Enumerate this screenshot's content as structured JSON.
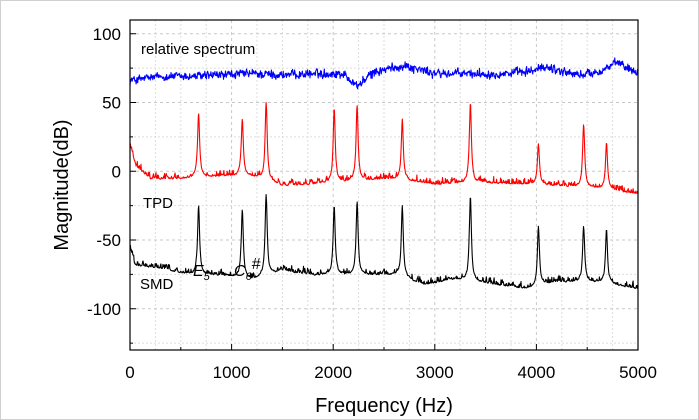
{
  "chart_data": {
    "type": "line",
    "title": "",
    "xlabel": "Frequency (Hz)",
    "ylabel": "Magnitude(dB)",
    "xlim": [
      0,
      5000
    ],
    "ylim": [
      -130,
      110
    ],
    "x_ticks": [
      0,
      1000,
      2000,
      3000,
      4000,
      5000
    ],
    "y_ticks": [
      100,
      50,
      0,
      -50,
      -100
    ],
    "grid": true,
    "legend": "none",
    "peak_frequencies": [
      675,
      1105,
      1340,
      2010,
      2235,
      2680,
      3350,
      4020,
      4465,
      4690
    ],
    "series": [
      {
        "name": "relative spectrum",
        "color": "#0000ff",
        "baseline": 70,
        "noise": 3.5,
        "points": [
          [
            0,
            66
          ],
          [
            300,
            69
          ],
          [
            600,
            69
          ],
          [
            900,
            70
          ],
          [
            1200,
            71
          ],
          [
            1500,
            70
          ],
          [
            1800,
            71
          ],
          [
            2100,
            71
          ],
          [
            2240,
            62
          ],
          [
            2400,
            72
          ],
          [
            2700,
            77
          ],
          [
            3000,
            71
          ],
          [
            3300,
            71
          ],
          [
            3600,
            71
          ],
          [
            3900,
            72
          ],
          [
            4100,
            76
          ],
          [
            4400,
            70
          ],
          [
            4600,
            72
          ],
          [
            4800,
            79
          ],
          [
            5000,
            72
          ]
        ]
      },
      {
        "name": "TPD",
        "color": "#ff0000",
        "baseline": -5,
        "noise": 4,
        "points": [
          [
            0,
            20
          ],
          [
            60,
            4
          ],
          [
            200,
            -5
          ],
          [
            500,
            -5
          ],
          [
            900,
            -3
          ],
          [
            1200,
            -3
          ],
          [
            1500,
            -10
          ],
          [
            2000,
            -8
          ],
          [
            2500,
            -5
          ],
          [
            2800,
            -7
          ],
          [
            3000,
            -9
          ],
          [
            3500,
            -8
          ],
          [
            3900,
            -9
          ],
          [
            4200,
            -10
          ],
          [
            4600,
            -12
          ],
          [
            5000,
            -16
          ]
        ],
        "peaks": [
          [
            675,
            42
          ],
          [
            1105,
            38
          ],
          [
            1340,
            50
          ],
          [
            2010,
            46
          ],
          [
            2235,
            48
          ],
          [
            2680,
            38
          ],
          [
            3350,
            50
          ],
          [
            4020,
            20
          ],
          [
            4465,
            34
          ],
          [
            4690,
            21
          ]
        ]
      },
      {
        "name": "SMD",
        "color": "#000000",
        "baseline": -75,
        "noise": 4,
        "points": [
          [
            0,
            -55
          ],
          [
            50,
            -68
          ],
          [
            300,
            -70
          ],
          [
            600,
            -75
          ],
          [
            900,
            -75
          ],
          [
            1200,
            -78
          ],
          [
            1500,
            -72
          ],
          [
            1800,
            -75
          ],
          [
            2100,
            -75
          ],
          [
            2400,
            -75
          ],
          [
            2600,
            -75
          ],
          [
            2900,
            -82
          ],
          [
            3200,
            -78
          ],
          [
            3600,
            -82
          ],
          [
            3900,
            -85
          ],
          [
            4200,
            -80
          ],
          [
            4600,
            -80
          ],
          [
            5000,
            -85
          ]
        ],
        "peaks": [
          [
            675,
            -25
          ],
          [
            1105,
            -28
          ],
          [
            1340,
            -17
          ],
          [
            2010,
            -25
          ],
          [
            2235,
            -22
          ],
          [
            2680,
            -25
          ],
          [
            3350,
            -18
          ],
          [
            4020,
            -40
          ],
          [
            4465,
            -40
          ],
          [
            4690,
            -42
          ]
        ]
      }
    ],
    "annotations": {
      "relative": "relative spectrum",
      "tpd": "TPD",
      "smd": "SMD",
      "e5_base": "E",
      "e5_sub": "5",
      "c6_base": "C",
      "c6_sub": "6",
      "c6_sharp": "#"
    }
  }
}
